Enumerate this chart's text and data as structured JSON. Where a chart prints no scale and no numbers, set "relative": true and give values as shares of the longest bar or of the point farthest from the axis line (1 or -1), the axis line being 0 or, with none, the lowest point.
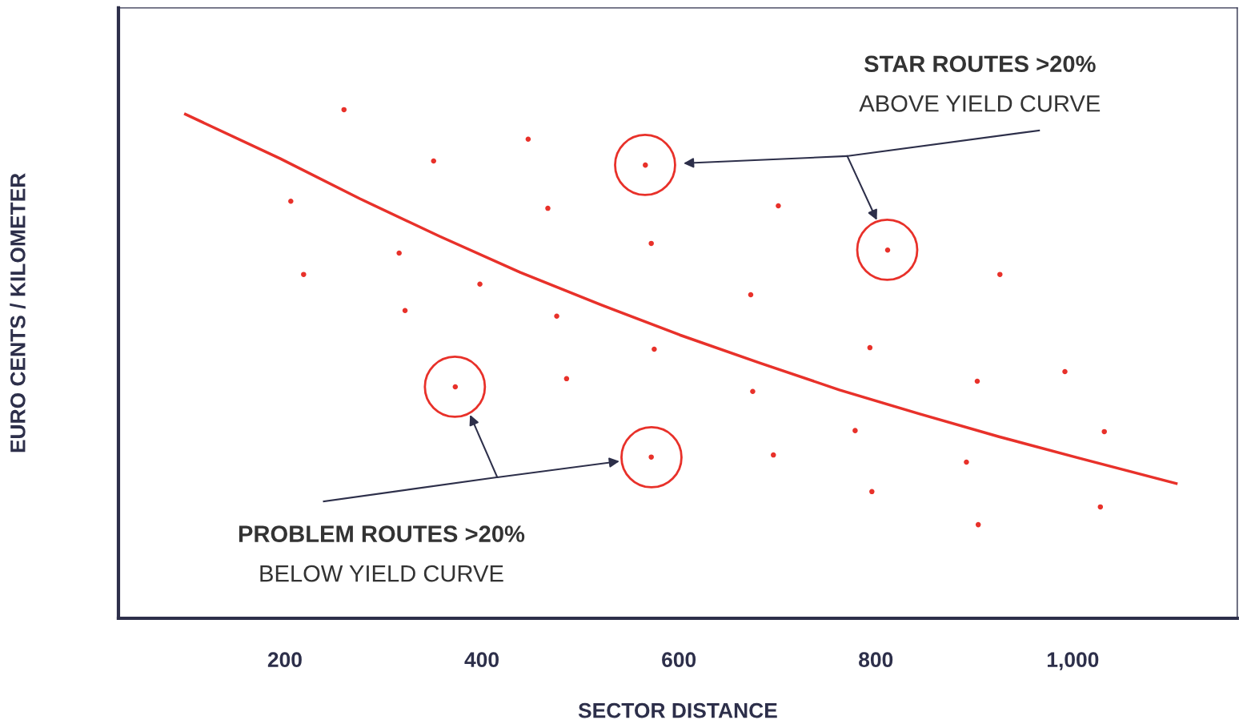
{
  "chart_data": {
    "type": "scatter",
    "xlabel": "SECTOR DISTANCE",
    "ylabel": "EURO CENTS / KILOMETER",
    "relative": true,
    "tick_labels": "x",
    "xlim": [
      31,
      1167
    ],
    "xticks": [
      200,
      400,
      600,
      800,
      {
        "value": 1000,
        "label": "1,000"
      }
    ],
    "series": [
      {
        "color": "#e8312a",
        "marker": "circle",
        "x": [
          260,
          447,
          351,
          566,
          206,
          467,
          701,
          316,
          572,
          812,
          219,
          398,
          926,
          673,
          322,
          476,
          575,
          794,
          373,
          486,
          992,
          903,
          675,
          779,
          1032,
          572,
          696,
          892,
          796,
          1028,
          904
        ],
        "values": [
          1.0,
          0.942,
          0.899,
          0.891,
          0.82,
          0.806,
          0.811,
          0.718,
          0.737,
          0.724,
          0.676,
          0.657,
          0.676,
          0.636,
          0.605,
          0.594,
          0.529,
          0.532,
          0.455,
          0.471,
          0.485,
          0.466,
          0.446,
          0.369,
          0.367,
          0.317,
          0.321,
          0.307,
          0.249,
          0.219,
          0.184
        ]
      },
      {
        "type": "line",
        "color": "#e8312a",
        "marker": "none",
        "line_style": "solid",
        "x": [
          99,
          195,
          276,
          357,
          439,
          520,
          601,
          682,
          763,
          844,
          925,
          1006,
          1105
        ],
        "values": [
          0.991,
          0.904,
          0.825,
          0.751,
          0.68,
          0.617,
          0.557,
          0.502,
          0.449,
          0.402,
          0.357,
          0.315,
          0.265
        ]
      }
    ],
    "annotations": [
      "STAR ROUTES >20%",
      "ABOVE YIELD CURVE",
      "PROBLEM ROUTES >20%",
      "BELOW YIELD CURVE"
    ]
  }
}
